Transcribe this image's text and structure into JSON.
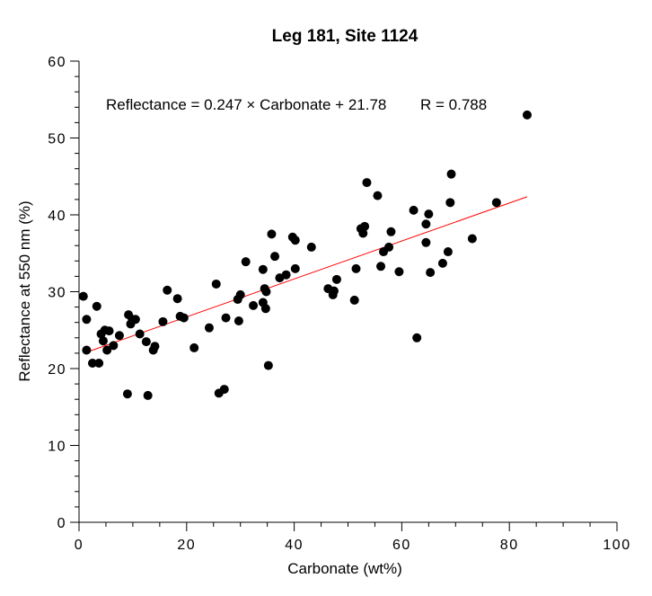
{
  "chart_data": {
    "type": "scatter",
    "title": "Leg 181, Site 1124",
    "xlabel": "Carbonate  (wt%)",
    "ylabel": "Reflectance at 550 nm (%)",
    "xlim": [
      0,
      100
    ],
    "ylim": [
      0,
      60
    ],
    "x_ticks": [
      0,
      20,
      40,
      60,
      80,
      100
    ],
    "y_ticks": [
      0,
      10,
      20,
      30,
      40,
      50,
      60
    ],
    "x_tick_labels": [
      "0",
      "20",
      "40",
      "60",
      "80",
      "100"
    ],
    "y_tick_labels": [
      "0",
      "10",
      "20",
      "30",
      "40",
      "50",
      "60"
    ],
    "grid": false,
    "annotation": {
      "equation": "Reflectance = 0.247 × Carbonate + 21.78",
      "r_value": "R = 0.788"
    },
    "regression": {
      "slope": 0.247,
      "intercept": 21.78,
      "x_range": [
        0.8,
        83.3
      ],
      "color": "#ff0000"
    },
    "marker_color": "#000000",
    "points": [
      {
        "x": 0.8,
        "y": 29.4
      },
      {
        "x": 1.4,
        "y": 26.4
      },
      {
        "x": 1.4,
        "y": 22.4
      },
      {
        "x": 2.5,
        "y": 20.7
      },
      {
        "x": 3.3,
        "y": 28.1
      },
      {
        "x": 3.7,
        "y": 20.7
      },
      {
        "x": 4.1,
        "y": 24.5
      },
      {
        "x": 4.5,
        "y": 23.6
      },
      {
        "x": 4.8,
        "y": 25.0
      },
      {
        "x": 5.2,
        "y": 22.4
      },
      {
        "x": 5.6,
        "y": 24.9
      },
      {
        "x": 6.4,
        "y": 23.0
      },
      {
        "x": 7.5,
        "y": 24.3
      },
      {
        "x": 9.0,
        "y": 16.7
      },
      {
        "x": 9.2,
        "y": 27.0
      },
      {
        "x": 9.6,
        "y": 25.8
      },
      {
        "x": 9.9,
        "y": 26.4
      },
      {
        "x": 10.5,
        "y": 26.4
      },
      {
        "x": 11.3,
        "y": 24.5
      },
      {
        "x": 12.5,
        "y": 23.5
      },
      {
        "x": 12.8,
        "y": 16.5
      },
      {
        "x": 13.8,
        "y": 22.4
      },
      {
        "x": 14.1,
        "y": 22.9
      },
      {
        "x": 15.6,
        "y": 26.1
      },
      {
        "x": 16.4,
        "y": 30.2
      },
      {
        "x": 18.3,
        "y": 29.1
      },
      {
        "x": 18.8,
        "y": 26.8
      },
      {
        "x": 19.5,
        "y": 26.6
      },
      {
        "x": 21.4,
        "y": 22.7
      },
      {
        "x": 24.2,
        "y": 25.3
      },
      {
        "x": 25.5,
        "y": 31.0
      },
      {
        "x": 26.0,
        "y": 16.8
      },
      {
        "x": 27.0,
        "y": 17.3
      },
      {
        "x": 27.3,
        "y": 26.6
      },
      {
        "x": 29.5,
        "y": 29.0
      },
      {
        "x": 29.7,
        "y": 26.2
      },
      {
        "x": 30.0,
        "y": 29.6
      },
      {
        "x": 31.0,
        "y": 33.9
      },
      {
        "x": 32.4,
        "y": 28.2
      },
      {
        "x": 34.2,
        "y": 32.9
      },
      {
        "x": 34.2,
        "y": 28.6
      },
      {
        "x": 34.5,
        "y": 30.4
      },
      {
        "x": 34.7,
        "y": 27.8
      },
      {
        "x": 34.8,
        "y": 30.0
      },
      {
        "x": 35.2,
        "y": 20.4
      },
      {
        "x": 35.8,
        "y": 37.5
      },
      {
        "x": 36.4,
        "y": 34.6
      },
      {
        "x": 37.3,
        "y": 31.8
      },
      {
        "x": 38.5,
        "y": 32.2
      },
      {
        "x": 39.7,
        "y": 37.1
      },
      {
        "x": 40.2,
        "y": 36.7
      },
      {
        "x": 40.2,
        "y": 33.0
      },
      {
        "x": 43.2,
        "y": 35.8
      },
      {
        "x": 46.3,
        "y": 30.4
      },
      {
        "x": 47.2,
        "y": 29.6
      },
      {
        "x": 47.4,
        "y": 30.1
      },
      {
        "x": 47.9,
        "y": 31.6
      },
      {
        "x": 51.2,
        "y": 28.9
      },
      {
        "x": 51.5,
        "y": 33.0
      },
      {
        "x": 52.4,
        "y": 38.2
      },
      {
        "x": 52.8,
        "y": 37.6
      },
      {
        "x": 53.1,
        "y": 38.5
      },
      {
        "x": 53.5,
        "y": 44.2
      },
      {
        "x": 55.5,
        "y": 42.5
      },
      {
        "x": 56.1,
        "y": 33.3
      },
      {
        "x": 56.6,
        "y": 35.2
      },
      {
        "x": 57.6,
        "y": 35.8
      },
      {
        "x": 58.0,
        "y": 37.8
      },
      {
        "x": 59.5,
        "y": 32.6
      },
      {
        "x": 62.2,
        "y": 40.6
      },
      {
        "x": 62.8,
        "y": 24.0
      },
      {
        "x": 64.5,
        "y": 38.8
      },
      {
        "x": 64.5,
        "y": 36.4
      },
      {
        "x": 65.0,
        "y": 40.1
      },
      {
        "x": 65.3,
        "y": 32.5
      },
      {
        "x": 67.6,
        "y": 33.7
      },
      {
        "x": 68.6,
        "y": 35.2
      },
      {
        "x": 69.0,
        "y": 41.6
      },
      {
        "x": 69.2,
        "y": 45.3
      },
      {
        "x": 73.1,
        "y": 36.9
      },
      {
        "x": 77.6,
        "y": 41.6
      },
      {
        "x": 83.3,
        "y": 53.0
      }
    ]
  }
}
